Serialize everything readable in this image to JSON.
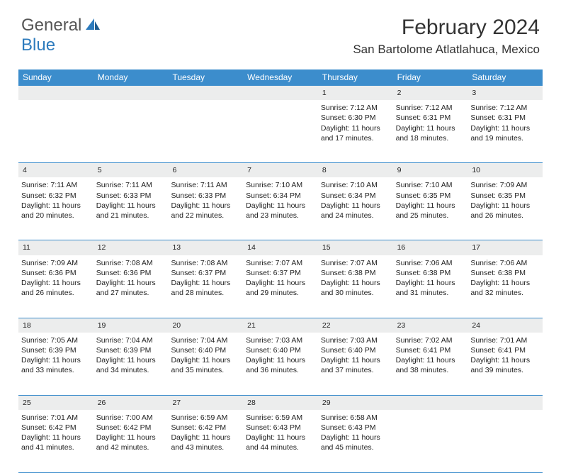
{
  "brand": {
    "general": "General",
    "blue": "Blue"
  },
  "title": "February 2024",
  "location": "San Bartolome Atlatlahuca, Mexico",
  "colors": {
    "header_bg": "#3c8dcc",
    "daynum_bg": "#eceded",
    "border": "#3c8dcc",
    "text": "#222222",
    "brand_blue": "#2d7bbd"
  },
  "weekdays": [
    "Sunday",
    "Monday",
    "Tuesday",
    "Wednesday",
    "Thursday",
    "Friday",
    "Saturday"
  ],
  "weeks": [
    [
      null,
      null,
      null,
      null,
      {
        "n": "1",
        "sr": "Sunrise: 7:12 AM",
        "ss": "Sunset: 6:30 PM",
        "d1": "Daylight: 11 hours",
        "d2": "and 17 minutes."
      },
      {
        "n": "2",
        "sr": "Sunrise: 7:12 AM",
        "ss": "Sunset: 6:31 PM",
        "d1": "Daylight: 11 hours",
        "d2": "and 18 minutes."
      },
      {
        "n": "3",
        "sr": "Sunrise: 7:12 AM",
        "ss": "Sunset: 6:31 PM",
        "d1": "Daylight: 11 hours",
        "d2": "and 19 minutes."
      }
    ],
    [
      {
        "n": "4",
        "sr": "Sunrise: 7:11 AM",
        "ss": "Sunset: 6:32 PM",
        "d1": "Daylight: 11 hours",
        "d2": "and 20 minutes."
      },
      {
        "n": "5",
        "sr": "Sunrise: 7:11 AM",
        "ss": "Sunset: 6:33 PM",
        "d1": "Daylight: 11 hours",
        "d2": "and 21 minutes."
      },
      {
        "n": "6",
        "sr": "Sunrise: 7:11 AM",
        "ss": "Sunset: 6:33 PM",
        "d1": "Daylight: 11 hours",
        "d2": "and 22 minutes."
      },
      {
        "n": "7",
        "sr": "Sunrise: 7:10 AM",
        "ss": "Sunset: 6:34 PM",
        "d1": "Daylight: 11 hours",
        "d2": "and 23 minutes."
      },
      {
        "n": "8",
        "sr": "Sunrise: 7:10 AM",
        "ss": "Sunset: 6:34 PM",
        "d1": "Daylight: 11 hours",
        "d2": "and 24 minutes."
      },
      {
        "n": "9",
        "sr": "Sunrise: 7:10 AM",
        "ss": "Sunset: 6:35 PM",
        "d1": "Daylight: 11 hours",
        "d2": "and 25 minutes."
      },
      {
        "n": "10",
        "sr": "Sunrise: 7:09 AM",
        "ss": "Sunset: 6:35 PM",
        "d1": "Daylight: 11 hours",
        "d2": "and 26 minutes."
      }
    ],
    [
      {
        "n": "11",
        "sr": "Sunrise: 7:09 AM",
        "ss": "Sunset: 6:36 PM",
        "d1": "Daylight: 11 hours",
        "d2": "and 26 minutes."
      },
      {
        "n": "12",
        "sr": "Sunrise: 7:08 AM",
        "ss": "Sunset: 6:36 PM",
        "d1": "Daylight: 11 hours",
        "d2": "and 27 minutes."
      },
      {
        "n": "13",
        "sr": "Sunrise: 7:08 AM",
        "ss": "Sunset: 6:37 PM",
        "d1": "Daylight: 11 hours",
        "d2": "and 28 minutes."
      },
      {
        "n": "14",
        "sr": "Sunrise: 7:07 AM",
        "ss": "Sunset: 6:37 PM",
        "d1": "Daylight: 11 hours",
        "d2": "and 29 minutes."
      },
      {
        "n": "15",
        "sr": "Sunrise: 7:07 AM",
        "ss": "Sunset: 6:38 PM",
        "d1": "Daylight: 11 hours",
        "d2": "and 30 minutes."
      },
      {
        "n": "16",
        "sr": "Sunrise: 7:06 AM",
        "ss": "Sunset: 6:38 PM",
        "d1": "Daylight: 11 hours",
        "d2": "and 31 minutes."
      },
      {
        "n": "17",
        "sr": "Sunrise: 7:06 AM",
        "ss": "Sunset: 6:38 PM",
        "d1": "Daylight: 11 hours",
        "d2": "and 32 minutes."
      }
    ],
    [
      {
        "n": "18",
        "sr": "Sunrise: 7:05 AM",
        "ss": "Sunset: 6:39 PM",
        "d1": "Daylight: 11 hours",
        "d2": "and 33 minutes."
      },
      {
        "n": "19",
        "sr": "Sunrise: 7:04 AM",
        "ss": "Sunset: 6:39 PM",
        "d1": "Daylight: 11 hours",
        "d2": "and 34 minutes."
      },
      {
        "n": "20",
        "sr": "Sunrise: 7:04 AM",
        "ss": "Sunset: 6:40 PM",
        "d1": "Daylight: 11 hours",
        "d2": "and 35 minutes."
      },
      {
        "n": "21",
        "sr": "Sunrise: 7:03 AM",
        "ss": "Sunset: 6:40 PM",
        "d1": "Daylight: 11 hours",
        "d2": "and 36 minutes."
      },
      {
        "n": "22",
        "sr": "Sunrise: 7:03 AM",
        "ss": "Sunset: 6:40 PM",
        "d1": "Daylight: 11 hours",
        "d2": "and 37 minutes."
      },
      {
        "n": "23",
        "sr": "Sunrise: 7:02 AM",
        "ss": "Sunset: 6:41 PM",
        "d1": "Daylight: 11 hours",
        "d2": "and 38 minutes."
      },
      {
        "n": "24",
        "sr": "Sunrise: 7:01 AM",
        "ss": "Sunset: 6:41 PM",
        "d1": "Daylight: 11 hours",
        "d2": "and 39 minutes."
      }
    ],
    [
      {
        "n": "25",
        "sr": "Sunrise: 7:01 AM",
        "ss": "Sunset: 6:42 PM",
        "d1": "Daylight: 11 hours",
        "d2": "and 41 minutes."
      },
      {
        "n": "26",
        "sr": "Sunrise: 7:00 AM",
        "ss": "Sunset: 6:42 PM",
        "d1": "Daylight: 11 hours",
        "d2": "and 42 minutes."
      },
      {
        "n": "27",
        "sr": "Sunrise: 6:59 AM",
        "ss": "Sunset: 6:42 PM",
        "d1": "Daylight: 11 hours",
        "d2": "and 43 minutes."
      },
      {
        "n": "28",
        "sr": "Sunrise: 6:59 AM",
        "ss": "Sunset: 6:43 PM",
        "d1": "Daylight: 11 hours",
        "d2": "and 44 minutes."
      },
      {
        "n": "29",
        "sr": "Sunrise: 6:58 AM",
        "ss": "Sunset: 6:43 PM",
        "d1": "Daylight: 11 hours",
        "d2": "and 45 minutes."
      },
      null,
      null
    ]
  ]
}
